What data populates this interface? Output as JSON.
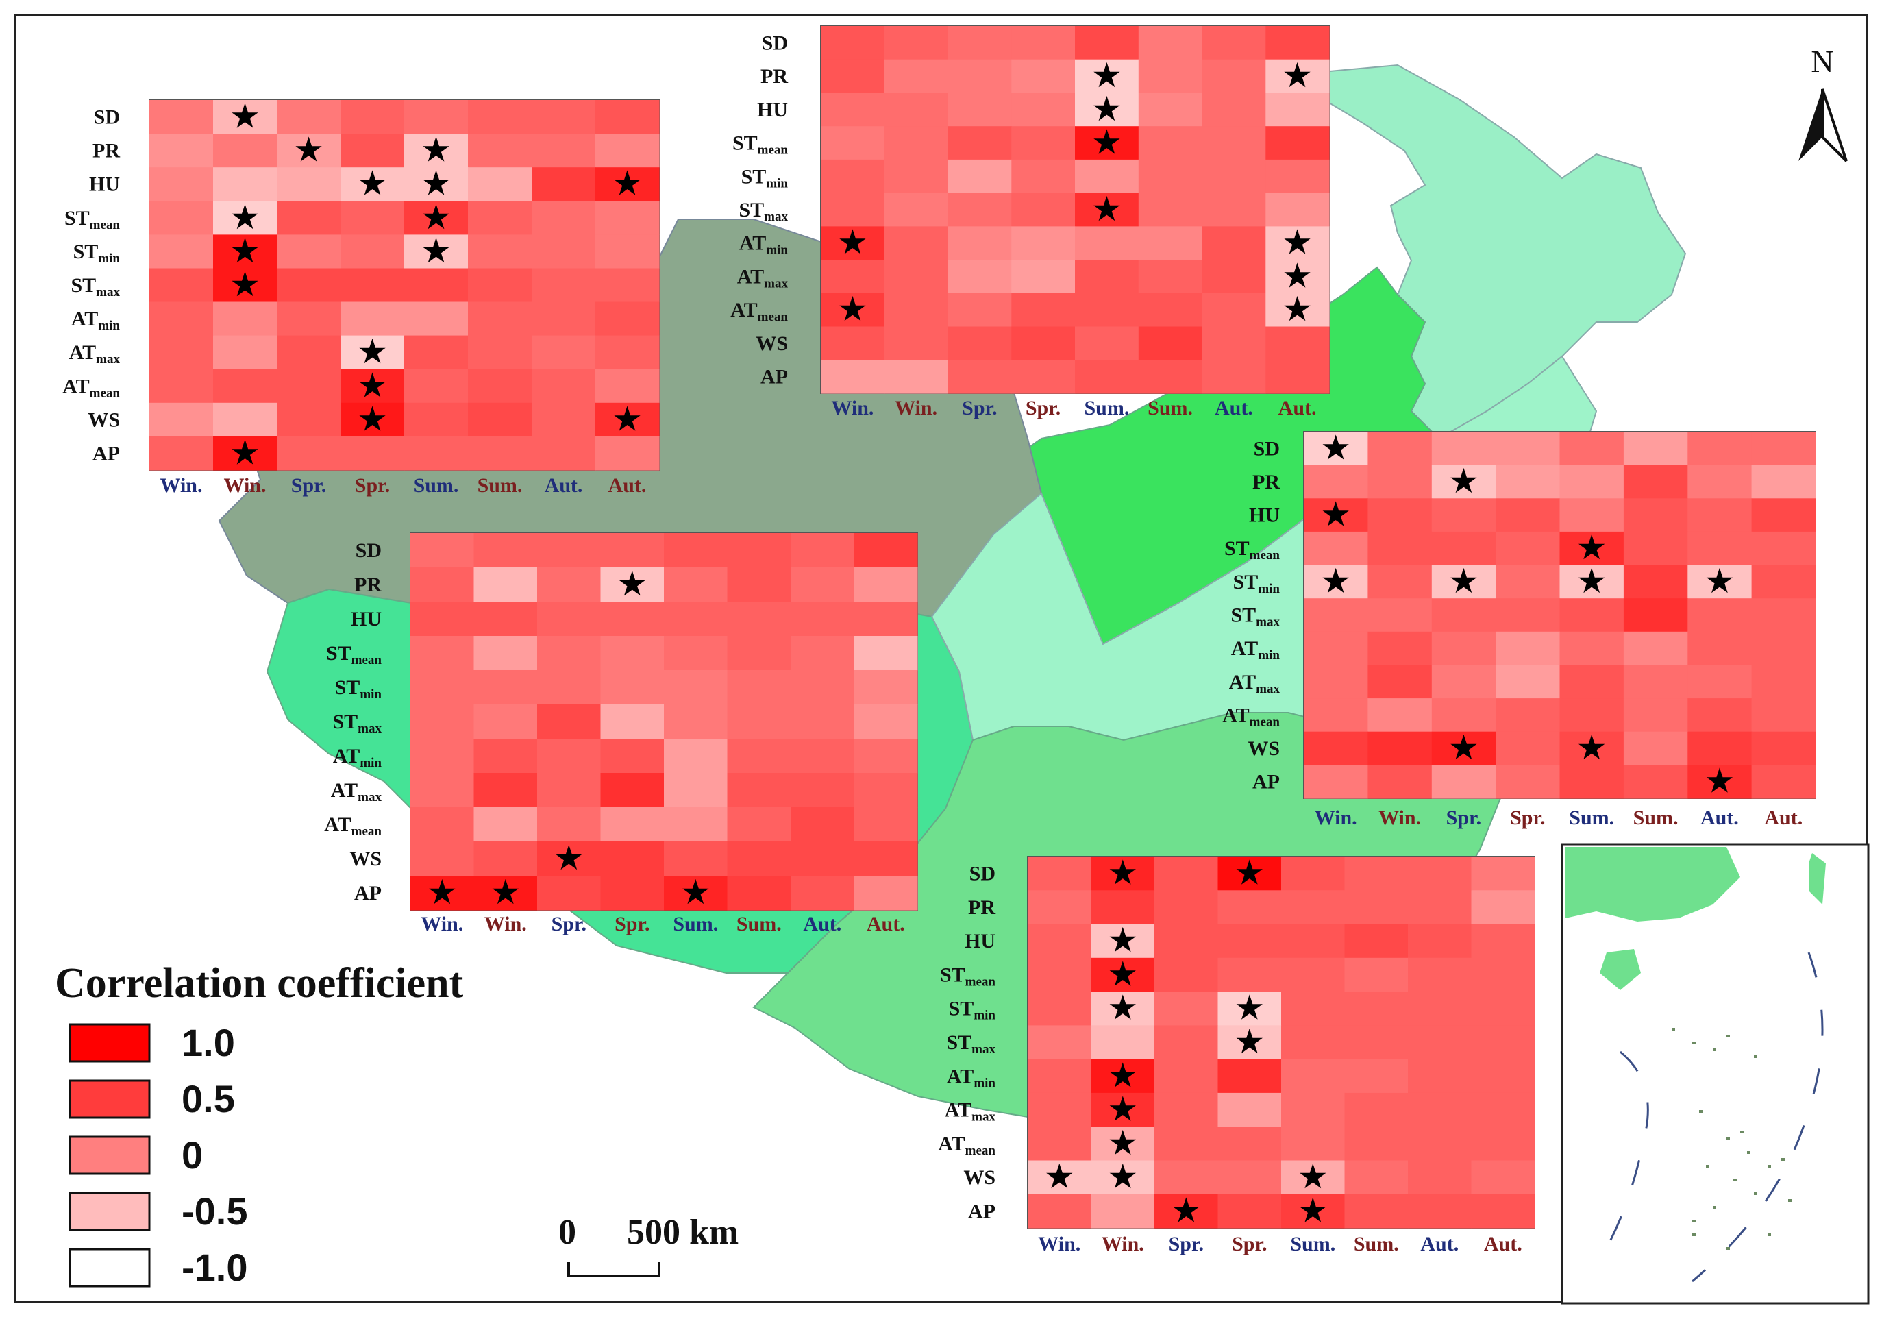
{
  "row_labels": [
    {
      "base": "SD",
      "sub": ""
    },
    {
      "base": "PR",
      "sub": ""
    },
    {
      "base": "HU",
      "sub": ""
    },
    {
      "base": "ST",
      "sub": "mean"
    },
    {
      "base": "ST",
      "sub": "min"
    },
    {
      "base": "ST",
      "sub": "max"
    },
    {
      "base": "AT",
      "sub": "min"
    },
    {
      "base": "AT",
      "sub": "max"
    },
    {
      "base": "AT",
      "sub": "mean"
    },
    {
      "base": "WS",
      "sub": ""
    },
    {
      "base": "AP",
      "sub": ""
    }
  ],
  "row_labels_alt": [
    {
      "base": "SD",
      "sub": ""
    },
    {
      "base": "PR",
      "sub": ""
    },
    {
      "base": "HU",
      "sub": ""
    },
    {
      "base": "ST",
      "sub": "mean"
    },
    {
      "base": "ST",
      "sub": "min"
    },
    {
      "base": "ST",
      "sub": "max"
    },
    {
      "base": "AT",
      "sub": "min"
    },
    {
      "base": "AT",
      "sub": "max"
    },
    {
      "base": "AT",
      "sub": "mean"
    },
    {
      "base": "WS",
      "sub": ""
    },
    {
      "base": "AP",
      "sub": ""
    }
  ],
  "col_labels": [
    "Win.",
    "Win.",
    "Spr.",
    "Spr.",
    "Sum.",
    "Sum.",
    "Aut.",
    "Aut."
  ],
  "col_colors": [
    "#1f2d7a",
    "#7a1f1f",
    "#1f2d7a",
    "#7a1f1f",
    "#1f2d7a",
    "#7a1f1f",
    "#1f2d7a",
    "#7a1f1f"
  ],
  "legend": {
    "title": "Correlation coefficient",
    "items": [
      {
        "label": "1.0",
        "color": "#ff0000"
      },
      {
        "label": "0.5",
        "color": "#ff3c3c"
      },
      {
        "label": "0",
        "color": "#ff7f7f"
      },
      {
        "label": "-0.5",
        "color": "#ffbcbc"
      },
      {
        "label": "-1.0",
        "color": "#ffffff"
      }
    ]
  },
  "scale_bar": {
    "zero": "0",
    "label": "500 km"
  },
  "north_label": "N",
  "region_colors": {
    "northeast": "#9aefc6",
    "north": "#3ae35e",
    "northwest": "#8ba88d",
    "southwest": "#45e396",
    "central": "#9ef3c9",
    "south": "#6fe08e",
    "inset": "#6fe08e"
  },
  "chart_data": [
    {
      "type": "heatmap",
      "panel": "top-left",
      "rows": [
        "SD",
        "PR",
        "HU",
        "ST_mean",
        "ST_min",
        "ST_max",
        "AT_min",
        "AT_max",
        "AT_mean",
        "WS",
        "AP"
      ],
      "columns": [
        "Win.",
        "Win.",
        "Spr.",
        "Spr.",
        "Sum.",
        "Sum.",
        "Aut.",
        "Aut."
      ],
      "values": [
        [
          0.0,
          -0.5,
          0.0,
          0.2,
          0.1,
          0.2,
          0.2,
          0.3
        ],
        [
          -0.2,
          0.0,
          -0.3,
          0.3,
          -0.6,
          0.1,
          0.1,
          -0.1
        ],
        [
          -0.1,
          -0.5,
          -0.4,
          -0.6,
          -0.6,
          -0.4,
          0.5,
          0.7
        ],
        [
          0.0,
          -0.7,
          0.3,
          0.2,
          0.5,
          0.2,
          0.1,
          0.0
        ],
        [
          -0.1,
          0.8,
          0.0,
          0.1,
          -0.6,
          0.1,
          0.1,
          0.0
        ],
        [
          0.3,
          0.8,
          0.4,
          0.4,
          0.4,
          0.3,
          0.2,
          0.2
        ],
        [
          0.2,
          -0.1,
          0.2,
          -0.2,
          -0.2,
          0.2,
          0.2,
          0.3
        ],
        [
          0.2,
          -0.2,
          0.3,
          -0.7,
          0.3,
          0.2,
          0.1,
          0.2
        ],
        [
          0.2,
          0.3,
          0.3,
          0.7,
          0.2,
          0.3,
          0.2,
          0.0
        ],
        [
          -0.2,
          -0.4,
          0.3,
          0.8,
          0.3,
          0.4,
          0.2,
          0.6
        ],
        [
          0.2,
          0.8,
          0.2,
          0.2,
          0.2,
          0.2,
          0.2,
          0.0
        ]
      ],
      "stars": [
        [
          0,
          1
        ],
        [
          1,
          2
        ],
        [
          1,
          4
        ],
        [
          2,
          3
        ],
        [
          2,
          4
        ],
        [
          2,
          7
        ],
        [
          3,
          1
        ],
        [
          3,
          4
        ],
        [
          4,
          1
        ],
        [
          4,
          4
        ],
        [
          5,
          1
        ],
        [
          7,
          3
        ],
        [
          8,
          3
        ],
        [
          9,
          3
        ],
        [
          9,
          7
        ],
        [
          10,
          1
        ]
      ]
    },
    {
      "type": "heatmap",
      "panel": "top-center",
      "rows": [
        "SD",
        "PR",
        "HU",
        "ST_mean",
        "ST_min",
        "ST_max",
        "AT_min",
        "AT_max",
        "AT_mean",
        "WS",
        "AP"
      ],
      "columns": [
        "Win.",
        "Win.",
        "Spr.",
        "Spr.",
        "Sum.",
        "Sum.",
        "Aut.",
        "Aut."
      ],
      "values": [
        [
          0.3,
          0.2,
          0.1,
          0.1,
          0.4,
          0.0,
          0.2,
          0.4
        ],
        [
          0.3,
          0.0,
          0.0,
          -0.1,
          -0.7,
          0.0,
          0.1,
          -0.6
        ],
        [
          0.1,
          0.1,
          0.0,
          0.0,
          -0.7,
          -0.1,
          0.1,
          -0.4
        ],
        [
          0.0,
          0.1,
          0.3,
          0.2,
          0.8,
          0.1,
          0.1,
          0.5
        ],
        [
          0.2,
          0.1,
          -0.3,
          0.1,
          -0.2,
          0.1,
          0.1,
          0.1
        ],
        [
          0.2,
          0.0,
          0.1,
          0.2,
          0.6,
          0.1,
          0.1,
          -0.2
        ],
        [
          0.6,
          0.2,
          -0.1,
          -0.2,
          -0.1,
          -0.1,
          0.3,
          -0.6
        ],
        [
          0.3,
          0.2,
          -0.2,
          -0.3,
          0.3,
          0.2,
          0.3,
          -0.6
        ],
        [
          0.5,
          0.2,
          0.1,
          0.3,
          0.3,
          0.3,
          0.2,
          -0.6
        ],
        [
          0.3,
          0.2,
          0.3,
          0.4,
          0.2,
          0.5,
          0.2,
          0.3
        ],
        [
          -0.3,
          -0.3,
          0.2,
          0.2,
          0.3,
          0.3,
          0.2,
          0.3
        ]
      ],
      "stars": [
        [
          1,
          4
        ],
        [
          1,
          7
        ],
        [
          2,
          4
        ],
        [
          3,
          4
        ],
        [
          5,
          4
        ],
        [
          6,
          0
        ],
        [
          6,
          7
        ],
        [
          7,
          7
        ],
        [
          8,
          0
        ],
        [
          8,
          7
        ]
      ]
    },
    {
      "type": "heatmap",
      "panel": "middle-right",
      "rows": [
        "SD",
        "PR",
        "HU",
        "ST_mean",
        "ST_min",
        "ST_max",
        "AT_min",
        "AT_max",
        "AT_mean",
        "WS",
        "AP"
      ],
      "columns": [
        "Win.",
        "Win.",
        "Spr.",
        "Spr.",
        "Sum.",
        "Sum.",
        "Aut.",
        "Aut."
      ],
      "values": [
        [
          -0.7,
          0.1,
          -0.2,
          -0.2,
          0.1,
          -0.3,
          0.1,
          0.1
        ],
        [
          0.0,
          0.1,
          -0.6,
          -0.3,
          -0.2,
          0.4,
          0.0,
          -0.3
        ],
        [
          0.5,
          0.3,
          0.2,
          0.3,
          0.0,
          0.3,
          0.2,
          0.4
        ],
        [
          0.0,
          0.3,
          0.3,
          0.2,
          0.6,
          0.3,
          0.2,
          0.2
        ],
        [
          -0.6,
          0.2,
          -0.6,
          0.1,
          -0.6,
          0.5,
          -0.6,
          0.3
        ],
        [
          0.1,
          0.1,
          0.2,
          0.2,
          0.3,
          0.6,
          0.2,
          0.2
        ],
        [
          0.1,
          0.3,
          0.1,
          -0.2,
          0.1,
          -0.1,
          0.2,
          0.2
        ],
        [
          0.1,
          0.4,
          0.0,
          -0.3,
          0.3,
          0.1,
          0.1,
          0.2
        ],
        [
          0.1,
          -0.1,
          0.1,
          0.2,
          0.3,
          0.1,
          0.3,
          0.2
        ],
        [
          0.5,
          0.6,
          0.7,
          0.2,
          0.4,
          0.0,
          0.5,
          0.4
        ],
        [
          0.0,
          0.3,
          -0.2,
          0.1,
          0.4,
          0.3,
          0.6,
          0.3
        ]
      ],
      "stars": [
        [
          0,
          0
        ],
        [
          1,
          2
        ],
        [
          2,
          0
        ],
        [
          3,
          4
        ],
        [
          4,
          0
        ],
        [
          4,
          2
        ],
        [
          4,
          4
        ],
        [
          4,
          6
        ],
        [
          9,
          2
        ],
        [
          9,
          4
        ],
        [
          10,
          6
        ]
      ]
    },
    {
      "type": "heatmap",
      "panel": "center",
      "rows": [
        "SD",
        "PR",
        "HU",
        "ST_mean",
        "ST_min",
        "ST_max",
        "AT_min",
        "AT_max",
        "AT_mean",
        "WS",
        "AP"
      ],
      "columns": [
        "Win.",
        "Win.",
        "Spr.",
        "Spr.",
        "Sum.",
        "Sum.",
        "Aut.",
        "Aut."
      ],
      "values": [
        [
          0.1,
          0.2,
          0.2,
          0.2,
          0.3,
          0.3,
          0.2,
          0.5
        ],
        [
          0.2,
          -0.5,
          0.1,
          -0.6,
          0.1,
          0.3,
          0.1,
          -0.2
        ],
        [
          0.3,
          0.3,
          0.2,
          0.2,
          0.2,
          0.2,
          0.2,
          0.2
        ],
        [
          0.1,
          -0.3,
          0.1,
          0.0,
          0.1,
          0.2,
          0.1,
          -0.5
        ],
        [
          0.1,
          0.1,
          0.1,
          0.0,
          0.0,
          0.1,
          0.1,
          -0.1
        ],
        [
          0.1,
          0.0,
          0.4,
          -0.4,
          0.0,
          0.1,
          0.1,
          -0.2
        ],
        [
          0.1,
          0.3,
          0.2,
          0.3,
          -0.3,
          0.2,
          0.2,
          0.1
        ],
        [
          0.1,
          0.5,
          0.2,
          0.6,
          -0.3,
          0.3,
          0.3,
          0.2
        ],
        [
          0.2,
          -0.3,
          0.1,
          -0.2,
          -0.2,
          0.2,
          0.4,
          0.2
        ],
        [
          0.2,
          0.3,
          0.5,
          0.5,
          0.3,
          0.4,
          0.4,
          0.4
        ],
        [
          0.8,
          0.8,
          0.4,
          0.5,
          0.7,
          0.5,
          0.3,
          -0.1
        ]
      ],
      "stars": [
        [
          1,
          3
        ],
        [
          9,
          2
        ],
        [
          10,
          0
        ],
        [
          10,
          1
        ],
        [
          10,
          4
        ]
      ]
    },
    {
      "type": "heatmap",
      "panel": "bottom-center",
      "rows": [
        "SD",
        "PR",
        "HU",
        "ST_mean",
        "ST_min",
        "ST_max",
        "AT_min",
        "AT_max",
        "AT_mean",
        "WS",
        "AP"
      ],
      "columns": [
        "Win.",
        "Win.",
        "Spr.",
        "Spr.",
        "Sum.",
        "Sum.",
        "Aut.",
        "Aut."
      ],
      "values": [
        [
          0.2,
          0.7,
          0.3,
          0.9,
          0.3,
          0.2,
          0.2,
          0.0
        ],
        [
          0.1,
          0.5,
          0.3,
          0.2,
          0.2,
          0.2,
          0.2,
          -0.2
        ],
        [
          0.2,
          -0.6,
          0.3,
          0.3,
          0.3,
          0.4,
          0.3,
          0.2
        ],
        [
          0.2,
          0.7,
          0.3,
          0.2,
          0.2,
          0.1,
          0.2,
          0.2
        ],
        [
          0.2,
          -0.6,
          0.1,
          -0.7,
          0.2,
          0.2,
          0.2,
          0.2
        ],
        [
          0.0,
          -0.5,
          0.2,
          -0.6,
          0.2,
          0.2,
          0.2,
          0.2
        ],
        [
          0.2,
          0.8,
          0.2,
          0.6,
          0.1,
          0.1,
          0.2,
          0.2
        ],
        [
          0.2,
          0.6,
          0.2,
          -0.3,
          0.1,
          0.2,
          0.2,
          0.2
        ],
        [
          0.2,
          -0.4,
          0.2,
          0.2,
          0.1,
          0.2,
          0.2,
          0.2
        ],
        [
          -0.6,
          -0.6,
          0.1,
          0.1,
          -0.4,
          0.1,
          0.2,
          0.1
        ],
        [
          0.2,
          -0.3,
          0.6,
          0.4,
          0.5,
          0.3,
          0.3,
          0.3
        ]
      ],
      "stars": [
        [
          0,
          1
        ],
        [
          0,
          3
        ],
        [
          2,
          1
        ],
        [
          3,
          1
        ],
        [
          4,
          1
        ],
        [
          4,
          3
        ],
        [
          5,
          3
        ],
        [
          6,
          1
        ],
        [
          7,
          1
        ],
        [
          8,
          1
        ],
        [
          9,
          0
        ],
        [
          9,
          1
        ],
        [
          9,
          4
        ],
        [
          10,
          2
        ],
        [
          10,
          4
        ]
      ]
    }
  ]
}
